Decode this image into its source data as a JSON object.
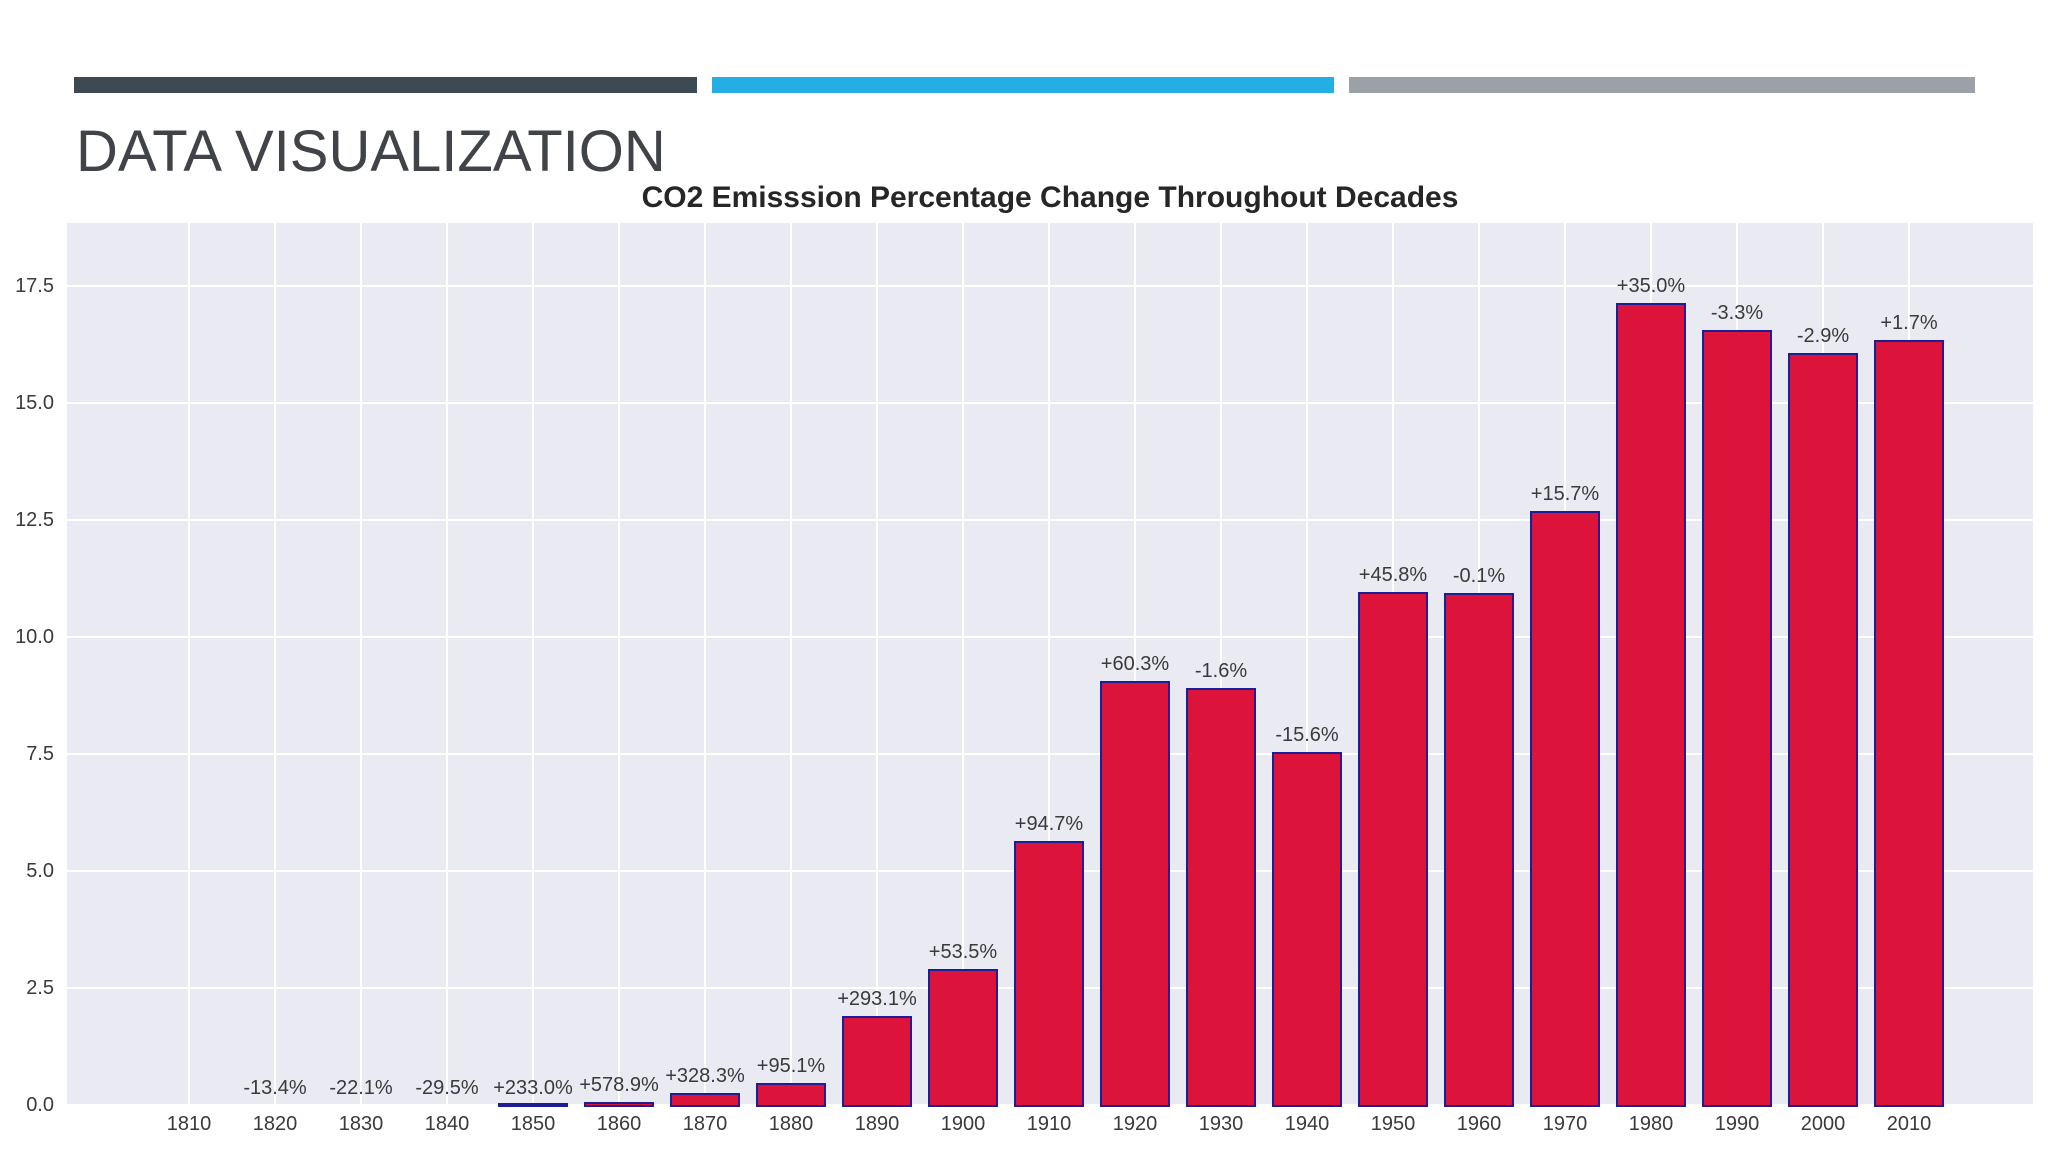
{
  "slide": {
    "heading": "DATA VISUALIZATION",
    "accent_bars": {
      "dark_color": "#3e4a53",
      "cyan_color": "#25aee3",
      "gray_color": "#9ba1a7"
    }
  },
  "chart_data": {
    "type": "bar",
    "title": "CO2 Emisssion Percentage Change Throughout Decades",
    "xlabel": "",
    "ylabel": "",
    "categories": [
      "1810",
      "1820",
      "1830",
      "1840",
      "1850",
      "1860",
      "1870",
      "1880",
      "1890",
      "1900",
      "1910",
      "1920",
      "1930",
      "1940",
      "1950",
      "1960",
      "1970",
      "1980",
      "1990",
      "2000",
      "2010"
    ],
    "values": [
      0.005,
      0.005,
      0.004,
      0.003,
      0.009,
      0.06,
      0.25,
      0.48,
      1.9,
      2.91,
      5.64,
      9.06,
      8.91,
      7.54,
      10.96,
      10.94,
      12.69,
      17.14,
      16.56,
      16.07,
      16.35
    ],
    "bar_labels": [
      "",
      "-13.4%",
      "-22.1%",
      "-29.5%",
      "+233.0%",
      "+578.9%",
      "+328.3%",
      "+95.1%",
      "+293.1%",
      "+53.5%",
      "+94.7%",
      "+60.3%",
      "-1.6%",
      "-15.6%",
      "+45.8%",
      "-0.1%",
      "+15.7%",
      "+35.0%",
      "-3.3%",
      "-2.9%",
      "+1.7%"
    ],
    "yticks": [
      "0.0",
      "2.5",
      "5.0",
      "7.5",
      "10.0",
      "12.5",
      "15.0",
      "17.5"
    ],
    "ylim": [
      0,
      18.85
    ],
    "grid": true,
    "legend_position": "none",
    "colors": {
      "bar_fill": "#dc143c",
      "bar_edge": "#1d1d96",
      "plot_background": "#eaeaf2",
      "gridline": "#ffffff",
      "tick_text": "#3a3a3a",
      "title_text": "#262626"
    }
  }
}
